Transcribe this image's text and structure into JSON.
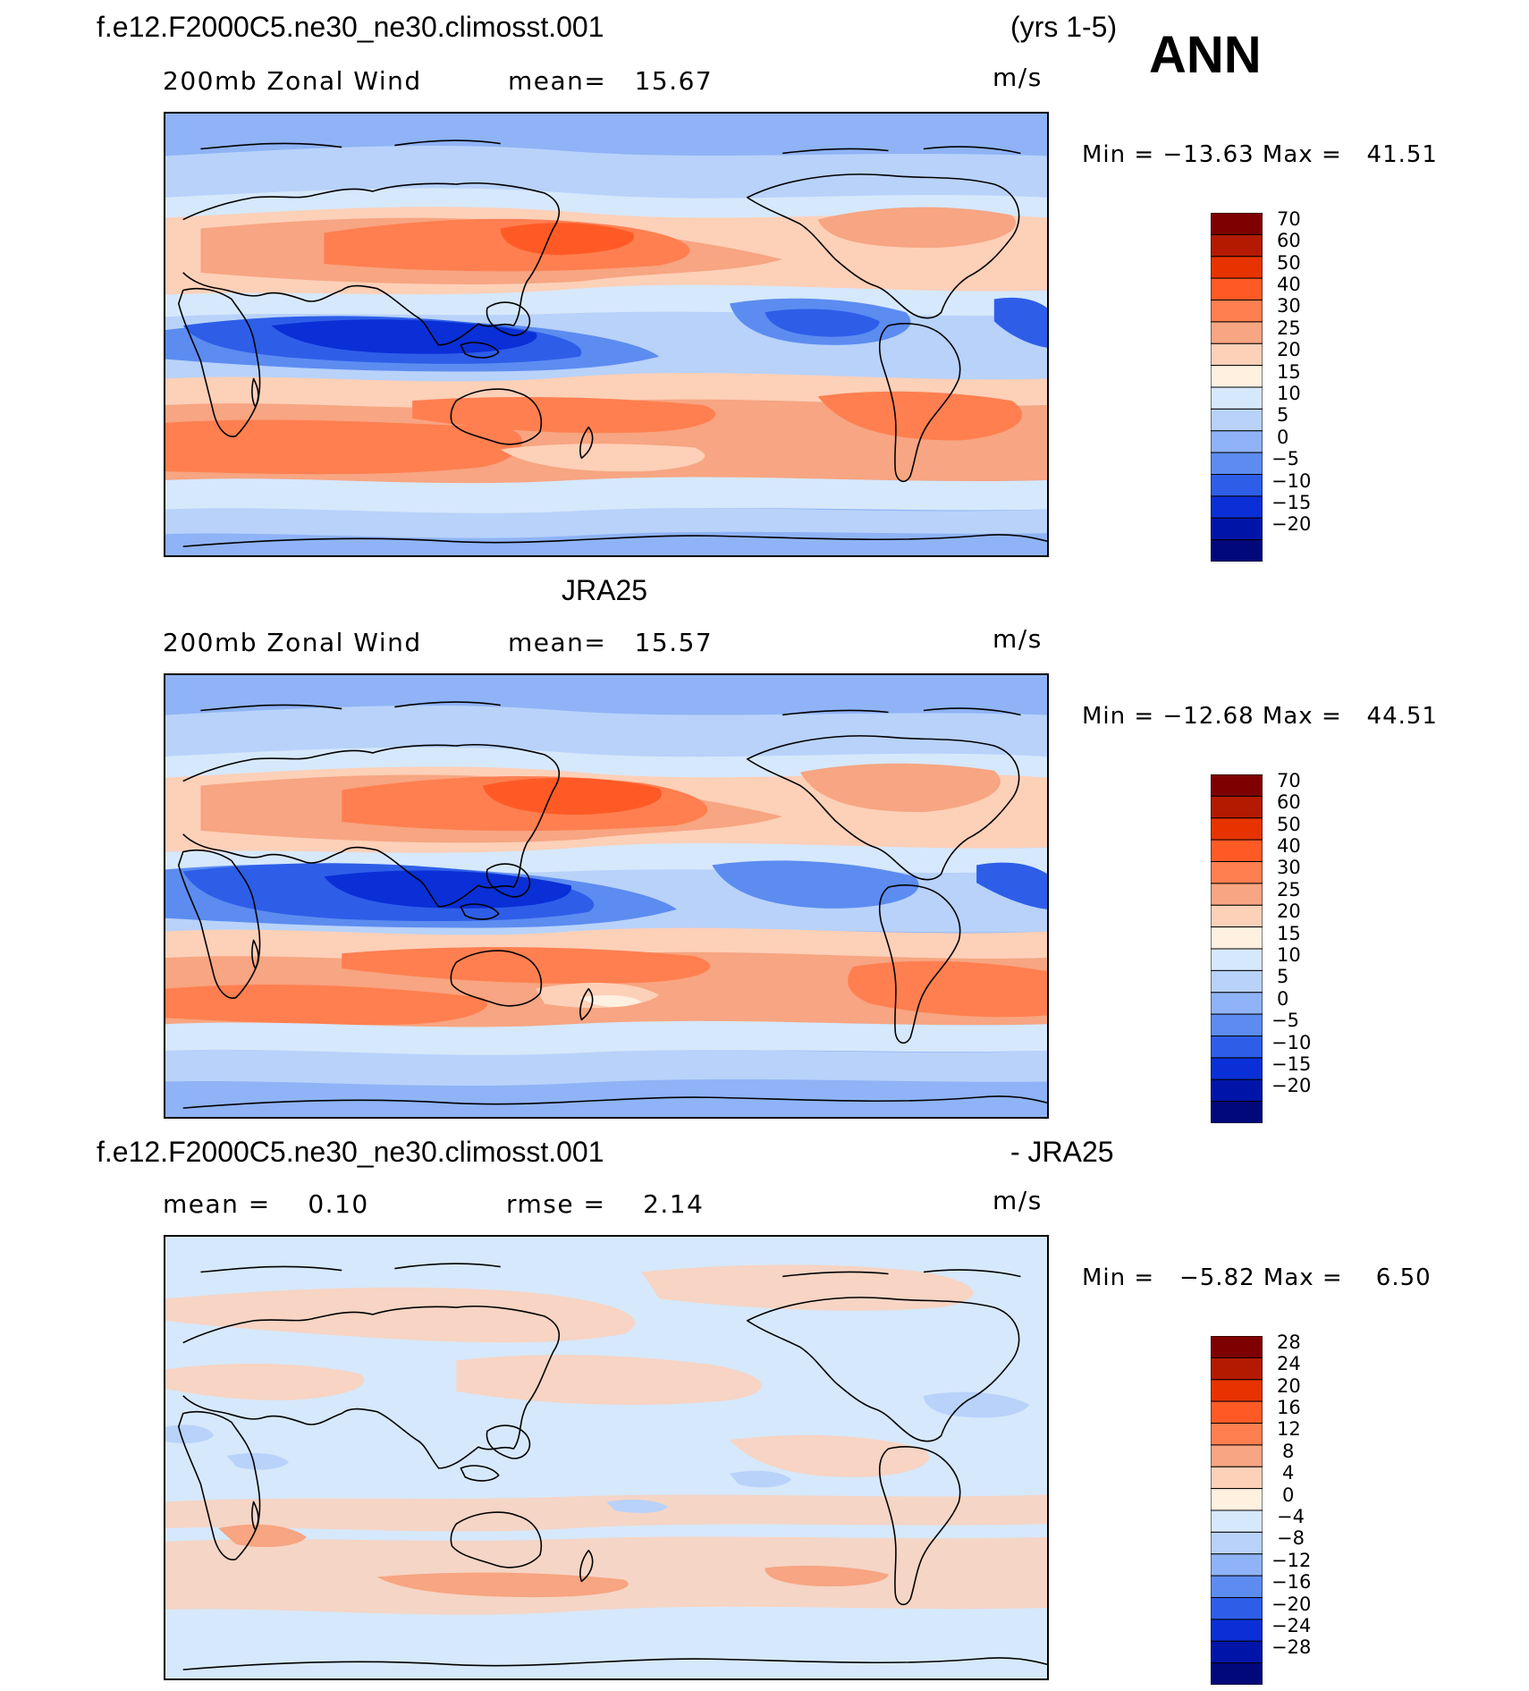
{
  "header": {
    "case_name": "f.e12.F2000C5.ne30_ne30.climosst.001",
    "years": "(yrs 1-5)",
    "season": "ANN"
  },
  "panels": [
    {
      "id": "model",
      "title": "",
      "left_label": "200mb Zonal Wind",
      "center_label": "mean=   15.67",
      "units": "m/s",
      "minmax": "Min = −13.63 Max =   41.51",
      "colorbar_labels": [
        "70",
        "60",
        "50",
        "40",
        "30",
        "25",
        "20",
        "15",
        "10",
        "5",
        "0",
        "−5",
        "−10",
        "−15",
        "−20"
      ]
    },
    {
      "id": "obs",
      "title": "JRA25",
      "left_label": "200mb Zonal Wind",
      "center_label": "mean=   15.57",
      "units": "m/s",
      "minmax": "Min = −12.68 Max =   44.51",
      "colorbar_labels": [
        "70",
        "60",
        "50",
        "40",
        "30",
        "25",
        "20",
        "15",
        "10",
        "5",
        "0",
        "−5",
        "−10",
        "−15",
        "−20"
      ]
    },
    {
      "id": "diff",
      "title_left": "f.e12.F2000C5.ne30_ne30.climosst.001",
      "title_right": "- JRA25",
      "left_label": "mean =    0.10",
      "center_label": "rmse =    2.14",
      "units": "m/s",
      "minmax": "Min =   −5.82 Max =    6.50",
      "colorbar_labels": [
        "28",
        "24",
        "20",
        "16",
        "12",
        "8",
        "4",
        "0",
        "−4",
        "−8",
        "−12",
        "−16",
        "−20",
        "−24",
        "−28"
      ]
    }
  ],
  "colors": {
    "wind_scale": [
      "#7f0000",
      "#b31a00",
      "#e63300",
      "#ff5a26",
      "#ff7f50",
      "#f7a582",
      "#fdd0b8",
      "#fff0e0",
      "#d6e8fb",
      "#b8d2fa",
      "#8fb3f6",
      "#5c8cf0",
      "#2e5ee8",
      "#0a2fd6",
      "#0015a8",
      "#00087a"
    ],
    "diff_scale": [
      "#7f0000",
      "#b31a00",
      "#e63300",
      "#ff5a26",
      "#ff7f50",
      "#f7a582",
      "#fdd0b8",
      "#fff0e0",
      "#d6e8fb",
      "#b8d2fa",
      "#8fb3f6",
      "#5c8cf0",
      "#2e5ee8",
      "#0a2fd6",
      "#0015a8",
      "#00087a"
    ]
  }
}
